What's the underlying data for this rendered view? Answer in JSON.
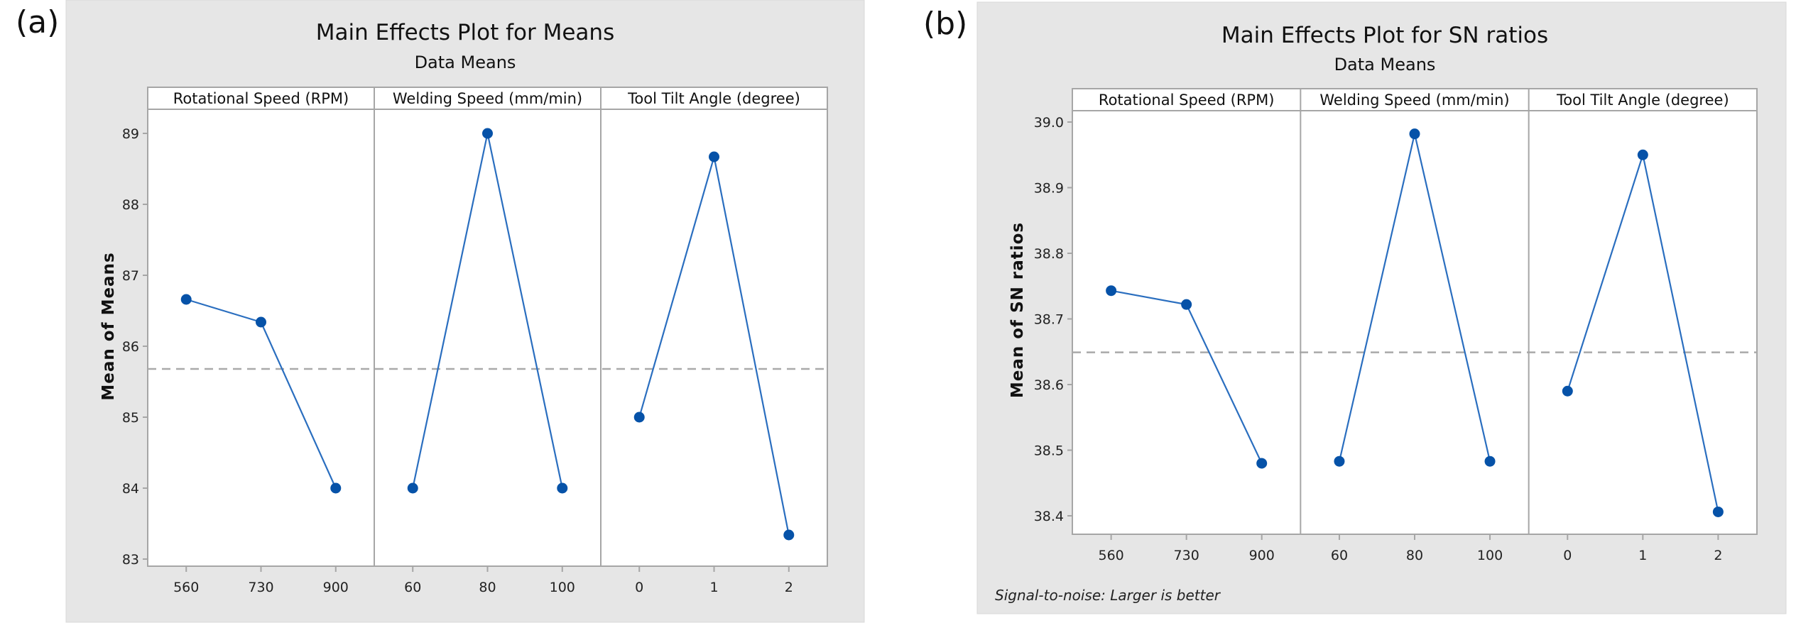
{
  "chart_data": [
    {
      "panel_label": "(a)",
      "type": "line",
      "title": "Main Effects Plot for Means",
      "subtitle": "Data Means",
      "ylabel": "Mean of Means",
      "ylim": [
        83,
        89
      ],
      "yticks": [
        "83",
        "84",
        "85",
        "86",
        "87",
        "88",
        "89"
      ],
      "ytick_values": [
        83,
        84,
        85,
        86,
        87,
        88,
        89
      ],
      "grand_mean": 85.68,
      "footnote": "",
      "facets": [
        {
          "name": "Rotational Speed (RPM)",
          "categories": [
            "560",
            "730",
            "900"
          ],
          "values": [
            86.66,
            86.34,
            84.0
          ]
        },
        {
          "name": "Welding Speed (mm/min)",
          "categories": [
            "60",
            "80",
            "100"
          ],
          "values": [
            84.0,
            89.0,
            84.0
          ]
        },
        {
          "name": "Tool Tilt Angle (degree)",
          "categories": [
            "0",
            "1",
            "2"
          ],
          "values": [
            85.0,
            88.67,
            83.34
          ]
        }
      ],
      "colors": {
        "line": "#2a6ebf",
        "marker": "#0652a8",
        "mean_line": "#a9a9a9",
        "frame": "#a6a6a6",
        "panel_bg": "#e6e6e6"
      }
    },
    {
      "panel_label": "(b)",
      "type": "line",
      "title": "Main Effects Plot for SN ratios",
      "subtitle": "Data Means",
      "ylabel": "Mean of SN ratios",
      "ylim": [
        38.4,
        39.0
      ],
      "yticks": [
        "38.4",
        "38.5",
        "38.6",
        "38.7",
        "38.8",
        "38.9",
        "39.0"
      ],
      "ytick_values": [
        38.4,
        38.5,
        38.6,
        38.7,
        38.8,
        38.9,
        39.0
      ],
      "grand_mean": 38.649,
      "footnote": "Signal-to-noise: Larger is better",
      "facets": [
        {
          "name": "Rotational Speed (RPM)",
          "categories": [
            "560",
            "730",
            "900"
          ],
          "values": [
            38.743,
            38.722,
            38.48
          ]
        },
        {
          "name": "Welding Speed (mm/min)",
          "categories": [
            "60",
            "80",
            "100"
          ],
          "values": [
            38.483,
            38.982,
            38.483
          ]
        },
        {
          "name": "Tool Tilt Angle (degree)",
          "categories": [
            "0",
            "1",
            "2"
          ],
          "values": [
            38.59,
            38.95,
            38.406
          ]
        }
      ],
      "colors": {
        "line": "#2a6ebf",
        "marker": "#0652a8",
        "mean_line": "#a9a9a9",
        "frame": "#a6a6a6",
        "panel_bg": "#e6e6e6"
      }
    }
  ]
}
